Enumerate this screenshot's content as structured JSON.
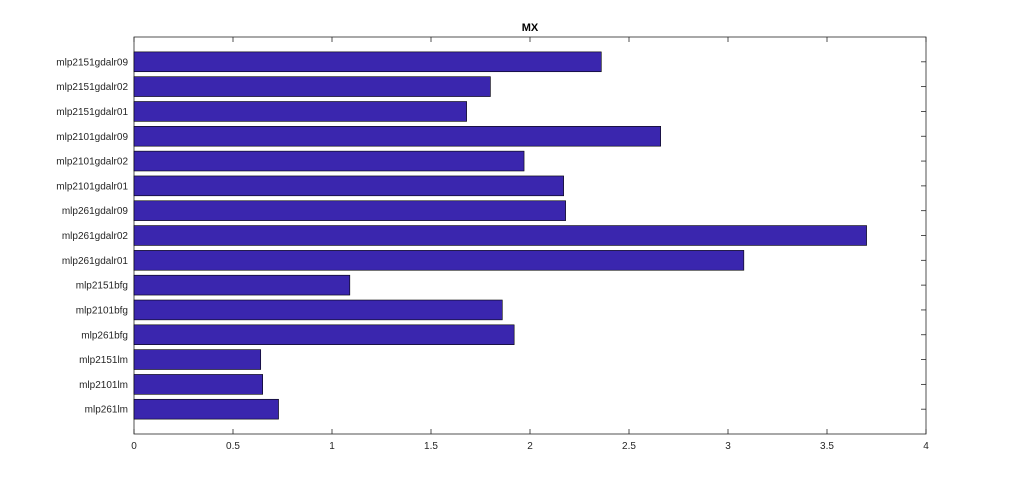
{
  "chart_data": {
    "type": "bar",
    "orientation": "horizontal",
    "title": "MX",
    "xlabel": "",
    "ylabel": "",
    "xlim": [
      0,
      4
    ],
    "xticks": [
      "0",
      "0.5",
      "1",
      "1.5",
      "2",
      "2.5",
      "3",
      "3.5",
      "4"
    ],
    "categories": [
      "mlp2151gdalr09",
      "mlp2151gdalr02",
      "mlp2151gdalr01",
      "mlp2101gdalr09",
      "mlp2101gdalr02",
      "mlp2101gdalr01",
      "mlp261gdalr09",
      "mlp261gdalr02",
      "mlp261gdalr01",
      "mlp2151bfg",
      "mlp2101bfg",
      "mlp261bfg",
      "mlp2151lm",
      "mlp2101lm",
      "mlp261lm"
    ],
    "values": [
      2.36,
      1.8,
      1.68,
      2.66,
      1.97,
      2.17,
      2.18,
      3.7,
      3.08,
      1.09,
      1.86,
      1.92,
      0.64,
      0.65,
      0.73
    ],
    "bar_color": "#3A26AE",
    "grid": false,
    "legend": "none"
  }
}
